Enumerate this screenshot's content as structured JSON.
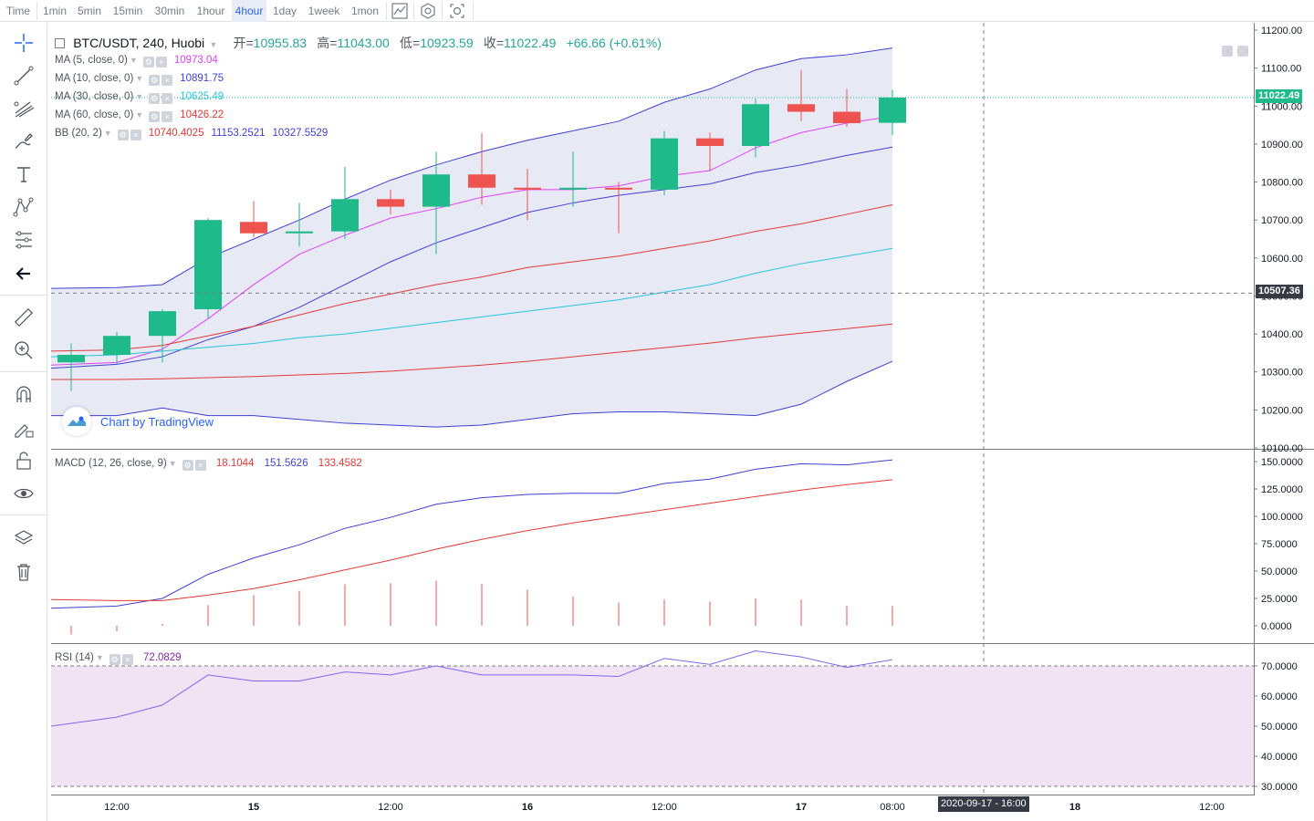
{
  "toolbar_top": {
    "time_label": "Time",
    "intervals": [
      {
        "label": "1min",
        "active": false
      },
      {
        "label": "5min",
        "active": false
      },
      {
        "label": "15min",
        "active": false
      },
      {
        "label": "30min",
        "active": false
      },
      {
        "label": "1hour",
        "active": false
      },
      {
        "label": "4hour",
        "active": true
      },
      {
        "label": "1day",
        "active": false
      },
      {
        "label": "1week",
        "active": false
      },
      {
        "label": "1mon",
        "active": false
      }
    ],
    "icons": [
      "indicators-icon",
      "settings-icon",
      "screenshot-icon"
    ]
  },
  "drawing_tools": [
    "crosshair-icon",
    "trend-line-icon",
    "pitchfork-icon",
    "brush-icon",
    "text-icon",
    "pattern-icon",
    "prediction-icon",
    "back-arrow-icon",
    "ruler-icon",
    "zoom-in-icon",
    "magnet-icon",
    "lock-drawing-icon",
    "unlock-icon",
    "eye-icon",
    "layers-icon",
    "trash-icon"
  ],
  "legend": {
    "title": "BTC/USDT, 240, Huobi",
    "open_label": "开=",
    "open": "10955.83",
    "high_label": "高=",
    "high": "11043.00",
    "low_label": "低=",
    "low": "10923.59",
    "close_label": "收=",
    "close": "11022.49",
    "change": "+66.66 (+0.61%)",
    "indicators": [
      {
        "name": "MA (5, close, 0)",
        "values": [
          "10973.04"
        ],
        "colors": [
          "#e040fb"
        ]
      },
      {
        "name": "MA (10, close, 0)",
        "values": [
          "10891.75"
        ],
        "colors": [
          "#3f3fd6"
        ]
      },
      {
        "name": "MA (30, close, 0)",
        "values": [
          "10625.49"
        ],
        "colors": [
          "#26c6da"
        ]
      },
      {
        "name": "MA (60, close, 0)",
        "values": [
          "10426.22"
        ],
        "colors": [
          "#e53935"
        ]
      },
      {
        "name": "BB (20, 2)",
        "values": [
          "10740.4025",
          "11153.2521",
          "10327.5529"
        ],
        "colors": [
          "#e53935",
          "#3f3fd6",
          "#3f3fd6"
        ]
      }
    ]
  },
  "macd_legend": {
    "name": "MACD (12, 26, close, 9)",
    "values": [
      "18.1044",
      "151.5626",
      "133.4582"
    ],
    "colors": [
      "#e53935",
      "#3f3fd6",
      "#e53935"
    ]
  },
  "rsi_legend": {
    "name": "RSI (14)",
    "value": "72.0829",
    "color": "#8e24aa"
  },
  "watermark": "Chart by TradingView",
  "last_price_label": "11022.49",
  "crosshair_price_label": "10507.36",
  "crosshair_time_label": "2020-09-17 - 16:00",
  "colors": {
    "up": "#26a69a",
    "up_fill": "#1fba8a",
    "down": "#ef5350",
    "ma5": "#e040fb",
    "ma10": "#3f3fd6",
    "ma30": "#26c6da",
    "ma60": "#e53935",
    "bb_fill": "#e3e5f3",
    "rsi_fill": "#f1e3f3",
    "rsi_line": "#7b68ee"
  },
  "chart_data": [
    {
      "type": "candlestick",
      "title": "BTC/USDT, 240, Huobi",
      "x_ticks": [
        "12:00",
        "15",
        "12:00",
        "16",
        "12:00",
        "17",
        "08:00",
        "18",
        "12:00"
      ],
      "ylim": [
        10090,
        11215
      ],
      "y_ticks": [
        "11200.00",
        "11100.00",
        "11000.00",
        "10900.00",
        "10800.00",
        "10700.00",
        "10600.00",
        "10500.00",
        "10400.00",
        "10300.00",
        "10200.00",
        "10100.00"
      ],
      "candles": [
        {
          "o": 10325,
          "h": 10375,
          "l": 10250,
          "c": 10345
        },
        {
          "o": 10345,
          "h": 10405,
          "l": 10320,
          "c": 10395
        },
        {
          "o": 10395,
          "h": 10465,
          "l": 10325,
          "c": 10460
        },
        {
          "o": 10465,
          "h": 10705,
          "l": 10440,
          "c": 10700
        },
        {
          "o": 10695,
          "h": 10750,
          "l": 10655,
          "c": 10665
        },
        {
          "o": 10665,
          "h": 10745,
          "l": 10630,
          "c": 10670
        },
        {
          "o": 10670,
          "h": 10840,
          "l": 10650,
          "c": 10755
        },
        {
          "o": 10755,
          "h": 10780,
          "l": 10715,
          "c": 10735
        },
        {
          "o": 10735,
          "h": 10880,
          "l": 10610,
          "c": 10820
        },
        {
          "o": 10820,
          "h": 10930,
          "l": 10740,
          "c": 10785
        },
        {
          "o": 10785,
          "h": 10835,
          "l": 10700,
          "c": 10780
        },
        {
          "o": 10780,
          "h": 10880,
          "l": 10735,
          "c": 10785
        },
        {
          "o": 10785,
          "h": 10800,
          "l": 10665,
          "c": 10780
        },
        {
          "o": 10780,
          "h": 10935,
          "l": 10765,
          "c": 10915
        },
        {
          "o": 10915,
          "h": 10930,
          "l": 10830,
          "c": 10895
        },
        {
          "o": 10895,
          "h": 11020,
          "l": 10865,
          "c": 11005
        },
        {
          "o": 11005,
          "h": 11095,
          "l": 10960,
          "c": 10985
        },
        {
          "o": 10985,
          "h": 11045,
          "l": 10945,
          "c": 10955
        },
        {
          "o": 10955.83,
          "h": 11043.0,
          "l": 10923.59,
          "c": 11022.49
        }
      ],
      "series": [
        {
          "name": "MA (5, close, 0)",
          "values": [
            10318,
            10325,
            10360,
            10440,
            10530,
            10610,
            10660,
            10705,
            10730,
            10760,
            10780,
            10780,
            10790,
            10815,
            10830,
            10890,
            10930,
            10955,
            10973
          ]
        },
        {
          "name": "MA (10, close, 0)",
          "values": [
            10310,
            10320,
            10340,
            10385,
            10420,
            10470,
            10530,
            10590,
            10640,
            10680,
            10720,
            10745,
            10765,
            10780,
            10795,
            10825,
            10845,
            10870,
            10892
          ]
        },
        {
          "name": "MA (30, close, 0)",
          "values": [
            10340,
            10345,
            10355,
            10365,
            10375,
            10390,
            10400,
            10415,
            10430,
            10445,
            10460,
            10475,
            10490,
            10510,
            10530,
            10560,
            10585,
            10605,
            10625
          ]
        },
        {
          "name": "MA (60, close, 0)",
          "values": [
            10280,
            10280,
            10282,
            10285,
            10288,
            10292,
            10296,
            10302,
            10310,
            10318,
            10328,
            10340,
            10352,
            10364,
            10376,
            10390,
            10402,
            10414,
            10426
          ]
        },
        {
          "name": "BB basis",
          "values": [
            10355,
            10358,
            10370,
            10395,
            10420,
            10450,
            10480,
            10505,
            10530,
            10550,
            10575,
            10590,
            10605,
            10625,
            10645,
            10670,
            10690,
            10715,
            10740
          ]
        },
        {
          "name": "BB upper",
          "values": [
            10520,
            10522,
            10530,
            10600,
            10650,
            10700,
            10755,
            10805,
            10845,
            10880,
            10910,
            10935,
            10960,
            11010,
            11045,
            11095,
            11125,
            11135,
            11153
          ]
        },
        {
          "name": "BB lower",
          "values": [
            10185,
            10185,
            10205,
            10185,
            10185,
            10175,
            10165,
            10160,
            10155,
            10160,
            10175,
            10190,
            10195,
            10195,
            10190,
            10185,
            10215,
            10275,
            10328
          ]
        }
      ]
    },
    {
      "type": "line",
      "title": "MACD (12, 26, close, 9)",
      "ylim": [
        -10,
        160
      ],
      "y_ticks": [
        "150.0000",
        "125.0000",
        "100.0000",
        "75.0000",
        "50.0000",
        "25.0000",
        "0.0000"
      ],
      "series": [
        {
          "name": "MACD",
          "values": [
            16,
            18,
            25,
            47,
            62,
            74,
            89,
            99,
            111,
            117,
            120,
            121,
            121,
            130,
            134,
            143,
            148,
            147,
            151.56
          ]
        },
        {
          "name": "Signal",
          "values": [
            24,
            23,
            23,
            28,
            34,
            42,
            51,
            60,
            70,
            79,
            87,
            94,
            100,
            106,
            112,
            118,
            124,
            129,
            133.46
          ]
        },
        {
          "name": "Histogram",
          "values": [
            -8,
            -5,
            2,
            19,
            28,
            32,
            38,
            39,
            41,
            38,
            33,
            27,
            21,
            24,
            22,
            25,
            24,
            18,
            18.1
          ]
        }
      ]
    },
    {
      "type": "line",
      "title": "RSI (14)",
      "ylim": [
        27,
        80
      ],
      "y_ticks": [
        "70.0000",
        "60.0000",
        "50.0000",
        "40.0000",
        "30.0000"
      ],
      "band": [
        30,
        70
      ],
      "series": [
        {
          "name": "RSI",
          "values": [
            50,
            53,
            57,
            67,
            65,
            65,
            68,
            67,
            70,
            67,
            67,
            67,
            66.5,
            72.5,
            70.5,
            75,
            73,
            69.5,
            72.08
          ]
        }
      ]
    }
  ]
}
